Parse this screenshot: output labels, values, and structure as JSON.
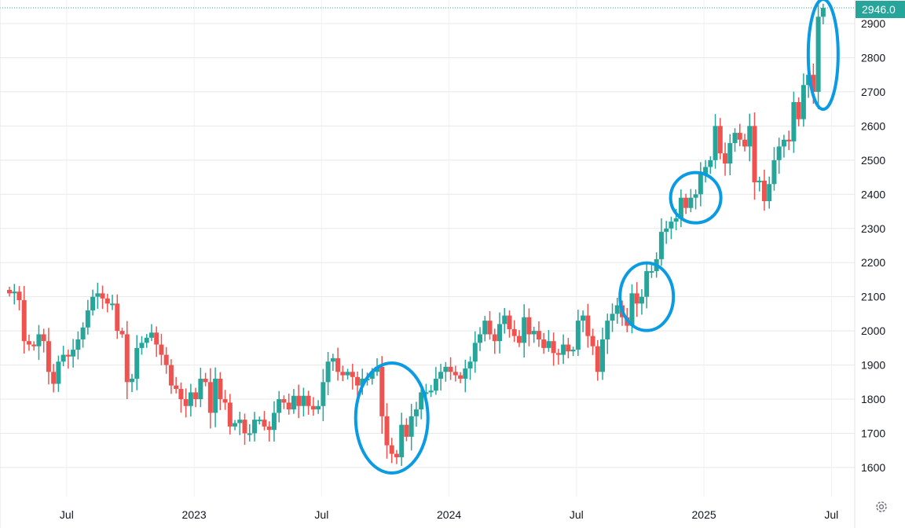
{
  "chart_data": {
    "type": "candlestick",
    "title": "",
    "interval": "weekly",
    "ylim": [
      1560,
      2960
    ],
    "y_ticks": [
      1600,
      1700,
      1800,
      1900,
      2000,
      2100,
      2200,
      2300,
      2400,
      2500,
      2600,
      2700,
      2800,
      2900
    ],
    "x_ticks": [
      {
        "label": "Jul",
        "week": 12
      },
      {
        "label": "2023",
        "week": 38
      },
      {
        "label": "Jul",
        "week": 64
      },
      {
        "label": "2024",
        "week": 90
      },
      {
        "label": "Jul",
        "week": 116
      },
      {
        "label": "2025",
        "week": 142
      },
      {
        "label": "Jul",
        "week": 168
      }
    ],
    "first_open": 2120,
    "closes": [
      2110,
      2115,
      2090,
      1970,
      1960,
      1955,
      1990,
      1970,
      1880,
      1845,
      1910,
      1930,
      1925,
      1945,
      1975,
      2010,
      2060,
      2100,
      2110,
      2095,
      2080,
      2080,
      2000,
      1990,
      1850,
      1860,
      1950,
      1965,
      1980,
      1995,
      1960,
      1930,
      1900,
      1840,
      1830,
      1800,
      1780,
      1820,
      1800,
      1860,
      1850,
      1760,
      1860,
      1800,
      1790,
      1720,
      1730,
      1740,
      1700,
      1700,
      1740,
      1740,
      1720,
      1710,
      1760,
      1800,
      1790,
      1770,
      1810,
      1780,
      1810,
      1780,
      1770,
      1780,
      1850,
      1910,
      1920,
      1880,
      1870,
      1880,
      1865,
      1840,
      1860,
      1860,
      1880,
      1895,
      1750,
      1665,
      1640,
      1630,
      1725,
      1690,
      1750,
      1770,
      1820,
      1820,
      1825,
      1860,
      1880,
      1895,
      1880,
      1870,
      1860,
      1890,
      1910,
      1965,
      1990,
      2030,
      1990,
      1970,
      2020,
      2045,
      2005,
      1985,
      1965,
      2040,
      1990,
      2000,
      1975,
      1950,
      1970,
      1935,
      1930,
      1960,
      1940,
      1945,
      2030,
      2045,
      1985,
      1955,
      1880,
      1975,
      2030,
      2050,
      2075,
      2040,
      2015,
      2110,
      2080,
      2100,
      2175,
      2175,
      2210,
      2290,
      2300,
      2320,
      2330,
      2390,
      2360,
      2390,
      2400,
      2460,
      2480,
      2500,
      2600,
      2520,
      2490,
      2550,
      2580,
      2560,
      2540,
      2600,
      2435,
      2440,
      2380,
      2430,
      2500,
      2540,
      2560,
      2555,
      2670,
      2620,
      2720,
      2750,
      2700,
      2920,
      2946
    ],
    "last_price_label": "2946.0",
    "colors": {
      "up": "#26a69a",
      "down": "#ef5350",
      "annotation": "#0a9be3",
      "grid": "#e8e8ea"
    },
    "annotations": [
      {
        "type": "ellipse",
        "center_week": 78,
        "center_price": 1745
      },
      {
        "type": "ellipse",
        "center_week": 130,
        "center_price": 2100
      },
      {
        "type": "ellipse",
        "center_week": 140,
        "center_price": 2390
      },
      {
        "type": "ellipse",
        "center_week": 166,
        "center_price": 2810
      }
    ]
  },
  "settings_icon": "gear-icon"
}
